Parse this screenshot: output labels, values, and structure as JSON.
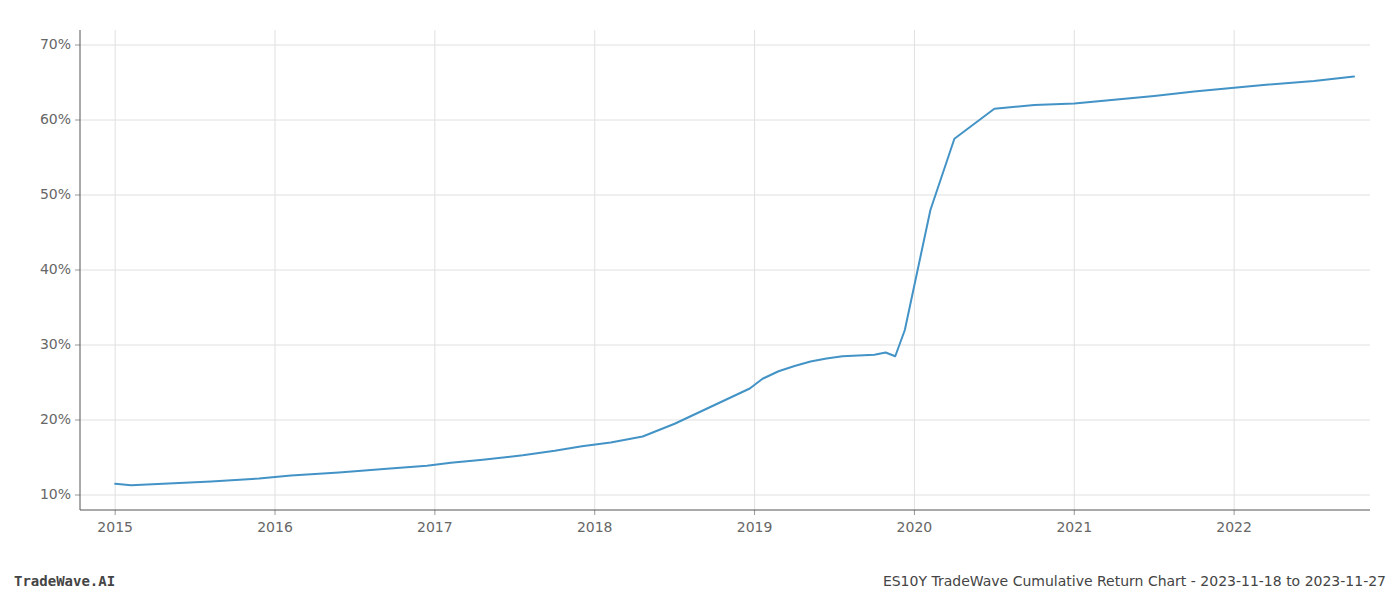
{
  "chart_data": {
    "type": "line",
    "x": [
      2015.0,
      2015.1,
      2015.3,
      2015.6,
      2015.9,
      2016.1,
      2016.4,
      2016.7,
      2016.95,
      2017.1,
      2017.3,
      2017.55,
      2017.75,
      2017.92,
      2018.1,
      2018.3,
      2018.5,
      2018.7,
      2018.85,
      2018.97,
      2019.05,
      2019.15,
      2019.25,
      2019.35,
      2019.45,
      2019.55,
      2019.65,
      2019.75,
      2019.82,
      2019.88,
      2019.94,
      2020.0,
      2020.1,
      2020.25,
      2020.5,
      2020.75,
      2021.0,
      2021.25,
      2021.5,
      2021.75,
      2022.0,
      2022.2,
      2022.5,
      2022.75
    ],
    "values": [
      11.5,
      11.3,
      11.5,
      11.8,
      12.2,
      12.6,
      13.0,
      13.5,
      13.9,
      14.3,
      14.7,
      15.3,
      15.9,
      16.5,
      17.0,
      17.8,
      19.5,
      21.5,
      23.0,
      24.2,
      25.5,
      26.5,
      27.2,
      27.8,
      28.2,
      28.5,
      28.6,
      28.7,
      29.0,
      28.5,
      32.0,
      38.0,
      48.0,
      57.5,
      61.5,
      62.0,
      62.2,
      62.7,
      63.2,
      63.8,
      64.3,
      64.7,
      65.2,
      65.8
    ],
    "color": "#4393c6",
    "xlim": [
      2014.78,
      2022.85
    ],
    "ylim": [
      8.0,
      72.0
    ],
    "xticks": [
      2015,
      2016,
      2017,
      2018,
      2019,
      2020,
      2021,
      2022
    ],
    "yticks": [
      {
        "value": 10,
        "label": "10%"
      },
      {
        "value": 20,
        "label": "20%"
      },
      {
        "value": 30,
        "label": "30%"
      },
      {
        "value": 40,
        "label": "40%"
      },
      {
        "value": 50,
        "label": "50%"
      },
      {
        "value": 60,
        "label": "60%"
      },
      {
        "value": 70,
        "label": "70%"
      }
    ],
    "grid": true,
    "annotations": [
      "TradeWave.AI",
      "ES10Y TradeWave Cumulative Return Chart - 2023-11-18 to 2023-11-27"
    ]
  }
}
